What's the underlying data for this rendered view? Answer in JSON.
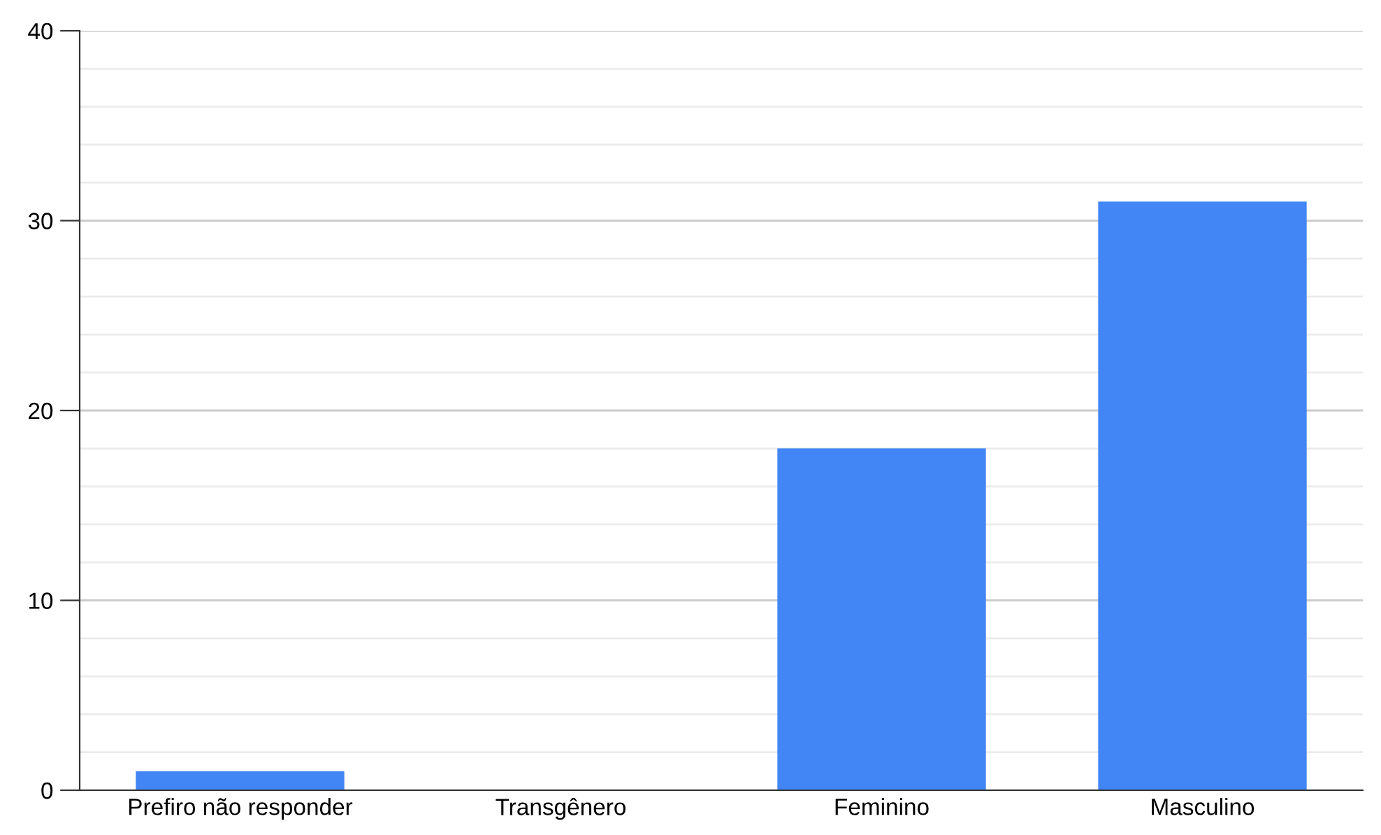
{
  "chart_data": {
    "type": "bar",
    "categories": [
      "Prefiro não responder",
      "Transgênero",
      "Feminino",
      "Masculino"
    ],
    "values": [
      1,
      0,
      18,
      31
    ],
    "color": "#4285f4",
    "ylim": [
      0,
      40
    ],
    "yticks": [
      0,
      {
        "value": 2,
        "label": null
      },
      {
        "value": 4,
        "label": null
      },
      {
        "value": 6,
        "label": null
      },
      {
        "value": 8,
        "label": null
      },
      10,
      {
        "value": 12,
        "label": null
      },
      {
        "value": 14,
        "label": null
      },
      {
        "value": 16,
        "label": null
      },
      {
        "value": 18,
        "label": null
      },
      20,
      {
        "value": 22,
        "label": null
      },
      {
        "value": 24,
        "label": null
      },
      {
        "value": 26,
        "label": null
      },
      {
        "value": 28,
        "label": null
      },
      30,
      {
        "value": 32,
        "label": null
      },
      {
        "value": 34,
        "label": null
      },
      {
        "value": 36,
        "label": null
      },
      {
        "value": 38,
        "label": null
      },
      40
    ],
    "grid": "y"
  }
}
